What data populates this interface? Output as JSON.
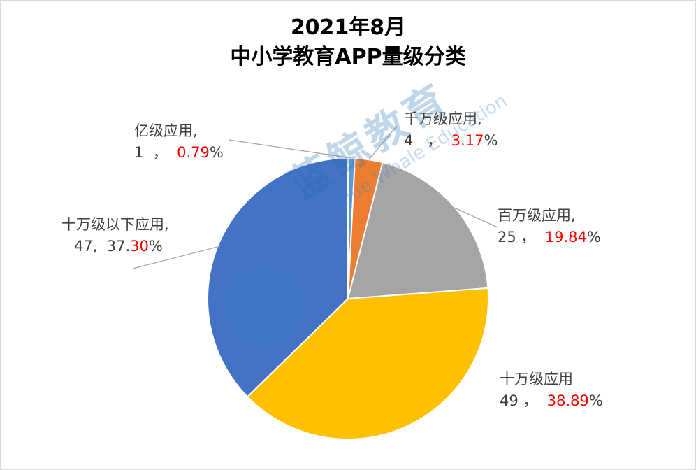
{
  "chart_data": {
    "type": "pie",
    "title_line1": "2021年8月",
    "title_line2": "中小学教育APP量级分类",
    "slices": [
      {
        "name": "亿级应用,",
        "count": "1",
        "sep": "，",
        "pct_black": "",
        "pct_red": "0.79",
        "pct_sign": "%",
        "value": 0.79,
        "color": "#5b9bd5"
      },
      {
        "name": "千万级应用,",
        "count": "4",
        "sep": "，",
        "pct_black": "",
        "pct_red": "3.17",
        "pct_sign": "%",
        "value": 3.17,
        "color": "#ed7d31"
      },
      {
        "name": "百万级应用,",
        "count": "25",
        "sep": "，",
        "pct_black": "",
        "pct_red": "19.84",
        "pct_sign": "%",
        "value": 19.84,
        "color": "#a5a5a5"
      },
      {
        "name": "十万级应用",
        "count": "49",
        "sep": "，",
        "pct_black": "",
        "pct_red": "38.89",
        "pct_sign": "%",
        "value": 38.89,
        "color": "#ffc000"
      },
      {
        "name": "十万级以下应用,",
        "count": "47,",
        "sep": "",
        "pct_black": "37.",
        "pct_red": "30",
        "pct_sign": "%",
        "value": 37.3,
        "color": "#4472c4"
      }
    ]
  },
  "watermark": {
    "text_cn": "蓝鲸教育",
    "text_en": "Blue Whale Education"
  }
}
